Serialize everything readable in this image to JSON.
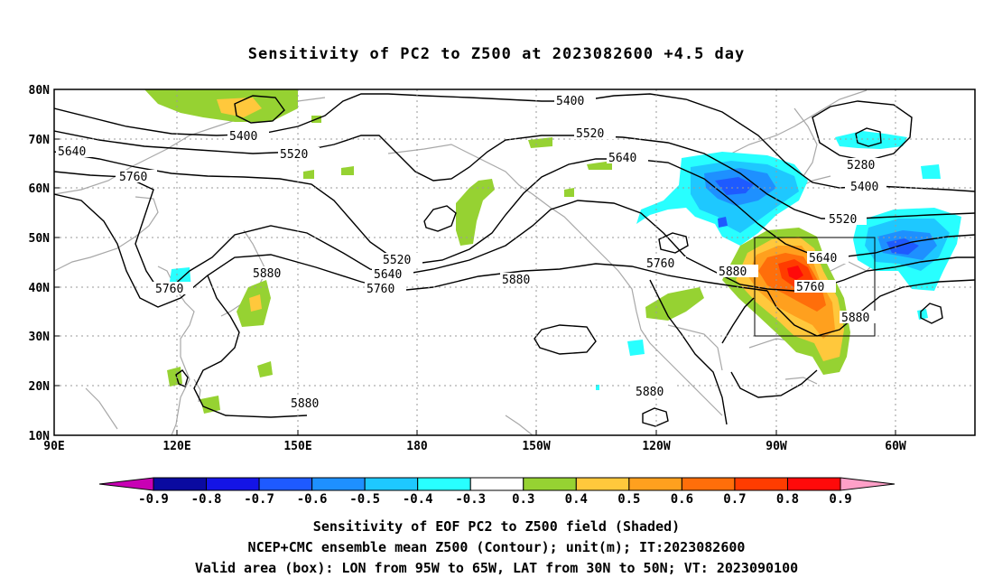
{
  "title": "Sensitivity of PC2 to Z500 at 2023082600 +4.5 day",
  "lat_labels": [
    "80N",
    "70N",
    "60N",
    "50N",
    "40N",
    "30N",
    "20N",
    "10N"
  ],
  "lon_labels": [
    "90E",
    "120E",
    "150E",
    "180",
    "150W",
    "120W",
    "90W",
    "60W"
  ],
  "contour_labels": {
    "c5400a": "5400",
    "c5400b": "5400",
    "c5400c": "5400",
    "c5520a": "5520",
    "c5520b": "5520",
    "c5520c": "5520",
    "c5520d": "5520",
    "c5640a": "5640",
    "c5640b": "5640",
    "c5640c": "5640",
    "c5640d": "5640",
    "c5760a": "5760",
    "c5760b": "5760",
    "c5760c": "5760",
    "c5760d": "5760",
    "c5760e": "5760",
    "c5880a": "5880",
    "c5880b": "5880",
    "c5880c": "5880",
    "c5880d": "5880",
    "c5880e": "5880",
    "c5280": "5280"
  },
  "colorbar": {
    "labels": [
      "-0.9",
      "-0.8",
      "-0.7",
      "-0.6",
      "-0.5",
      "-0.4",
      "-0.3",
      "0.3",
      "0.4",
      "0.5",
      "0.6",
      "0.7",
      "0.8",
      "0.9"
    ],
    "colors": [
      "#0a0aa0",
      "#1414e6",
      "#1e5aff",
      "#1e90ff",
      "#1ec8ff",
      "#28ffff",
      "#ffffff",
      "#96d232",
      "#ffc83c",
      "#ffa01e",
      "#ff6e0a",
      "#ff3c00",
      "#ff0a0a"
    ],
    "left_arrow_color": "#c800b4",
    "right_arrow_color": "#ffa0c8"
  },
  "captions": {
    "line1": "Sensitivity of EOF PC2 to Z500 field (Shaded)",
    "line2": "NCEP+CMC ensemble mean Z500 (Contour); unit(m); IT:2023082600",
    "line3": "Valid area (box): LON from 95W to 65W, LAT from 30N to 50N; VT: 2023090100"
  }
}
